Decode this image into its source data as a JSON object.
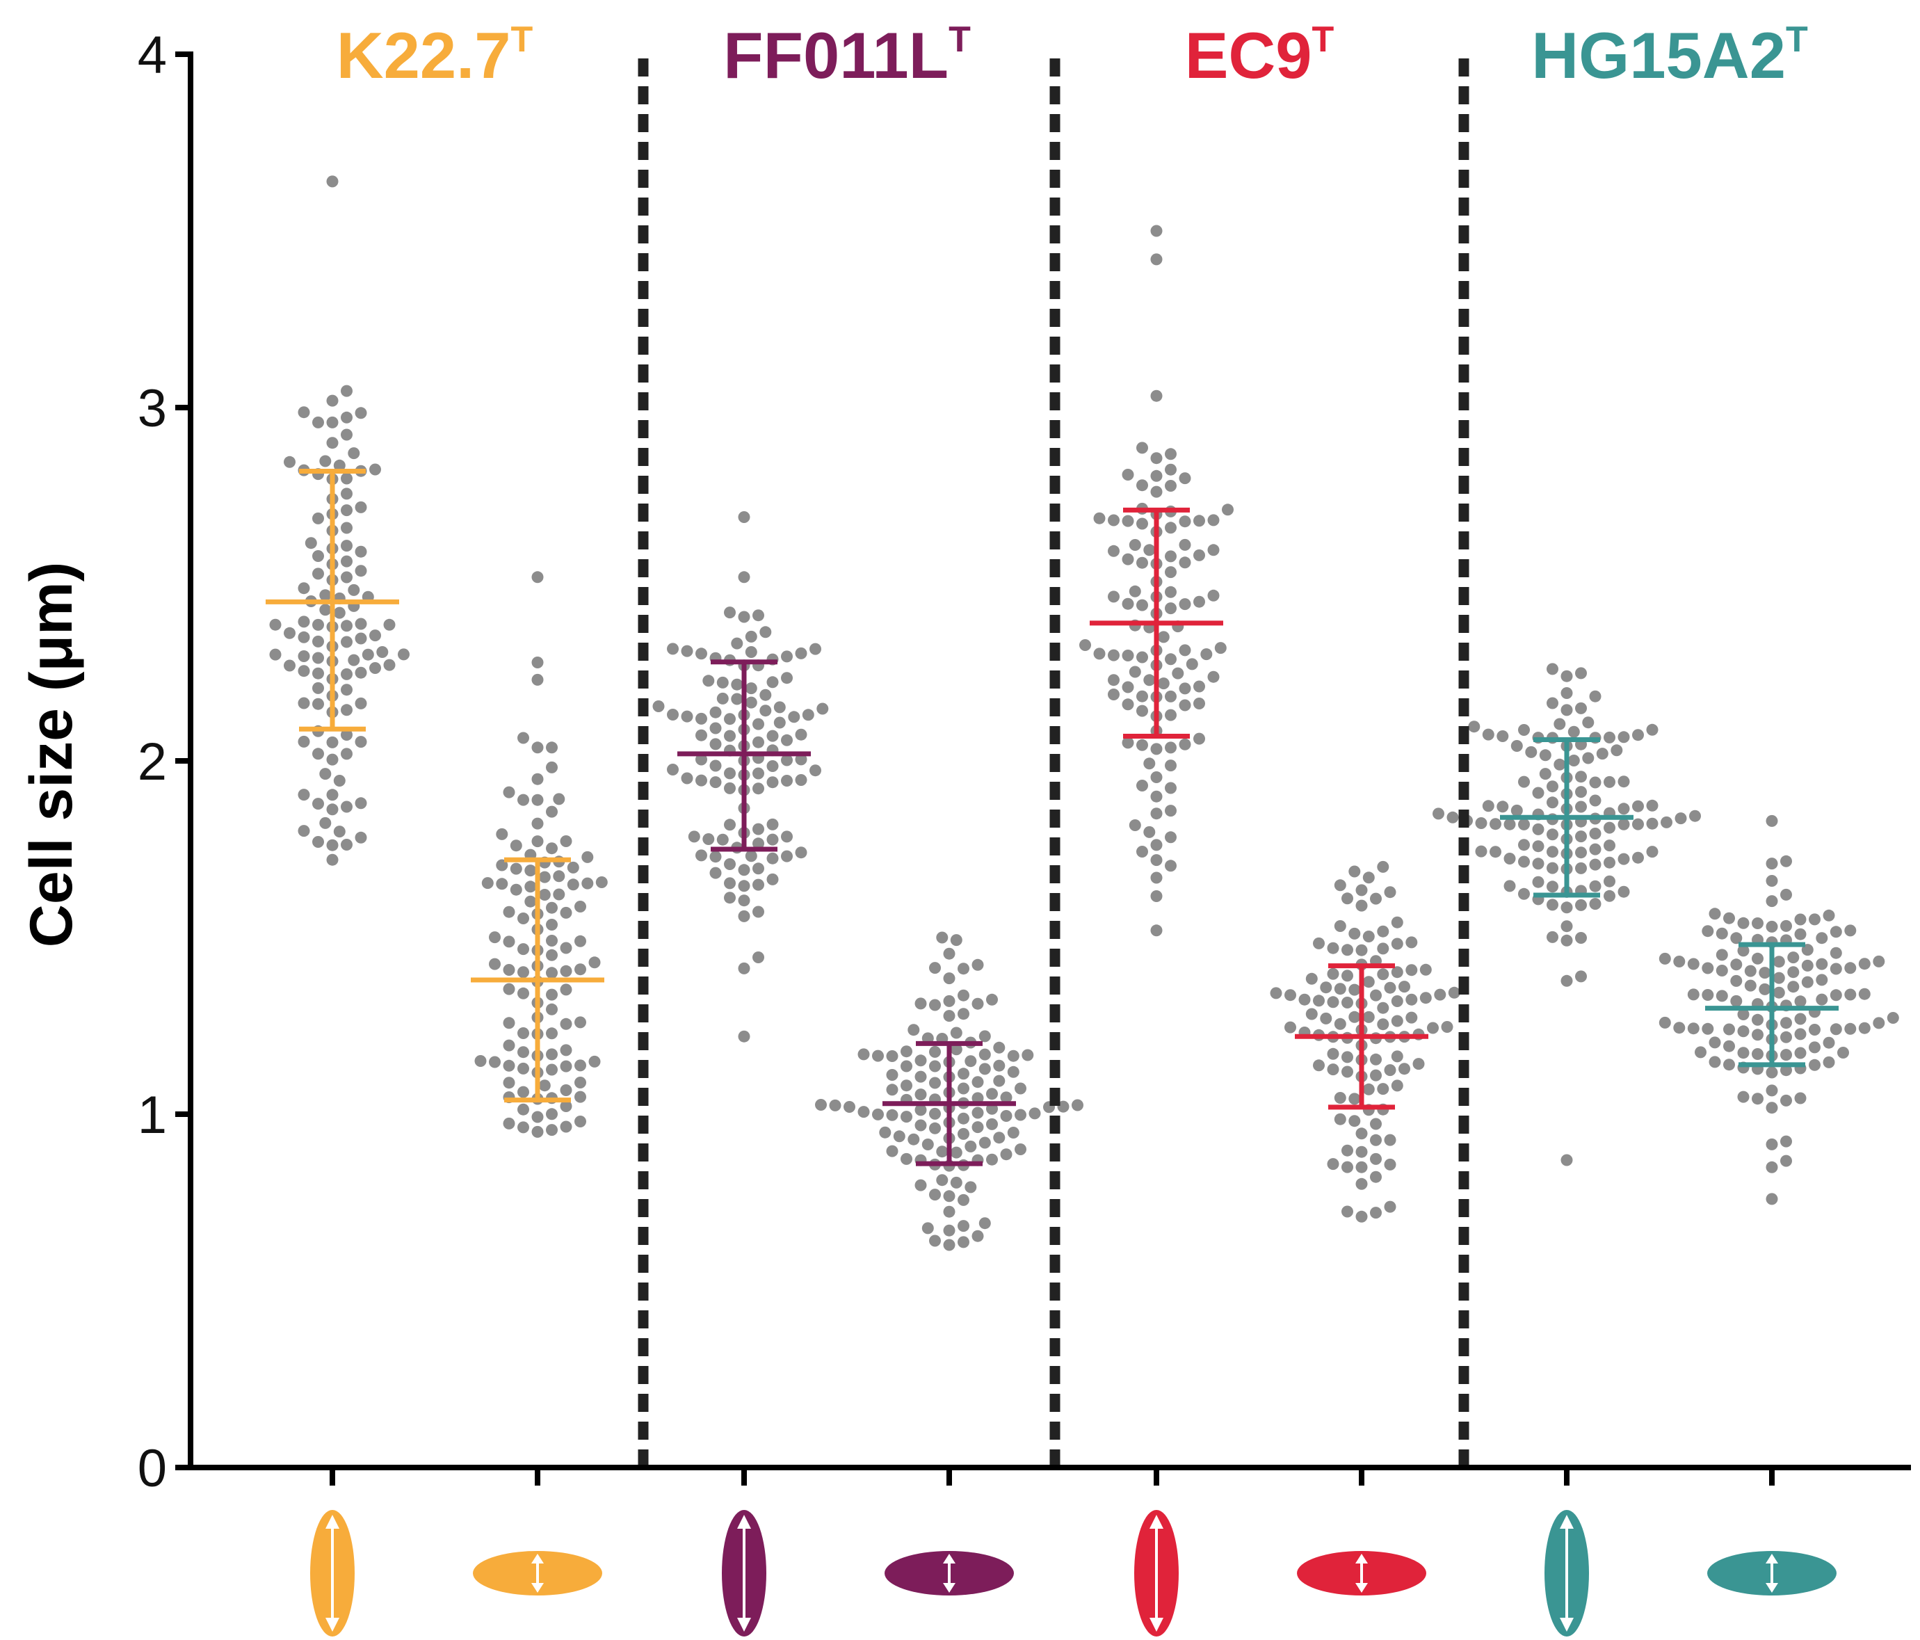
{
  "chart_data": {
    "type": "scatter",
    "subtype": "beeswarm-dot-plot-with-mean-and-sd",
    "title": "",
    "xlabel": "",
    "ylabel": "Cell size (μm)",
    "ylim": [
      0,
      4
    ],
    "yticks": [
      0,
      1,
      2,
      3,
      4
    ],
    "ytick_labels": [
      "0",
      "1",
      "2",
      "3",
      "4"
    ],
    "point_color": "#8c8c8c",
    "divider_style": "dashed",
    "groups": [
      {
        "name": "K22.7",
        "superscript": "T",
        "color": "#F7AC3B",
        "measurements": [
          {
            "dimension": "length",
            "icon": "vertical-cell-icon",
            "mean": 2.45,
            "sd_low": 2.09,
            "sd_high": 2.82,
            "min": 1.72,
            "max": 3.64,
            "n": 110
          },
          {
            "dimension": "width",
            "icon": "horizontal-cell-icon",
            "mean": 1.38,
            "sd_low": 1.04,
            "sd_high": 1.72,
            "min": 0.95,
            "max": 2.52,
            "n": 110
          }
        ]
      },
      {
        "name": "FF011L",
        "superscript": "T",
        "color": "#7D1D5A",
        "measurements": [
          {
            "dimension": "length",
            "icon": "vertical-cell-icon",
            "mean": 2.02,
            "sd_low": 1.75,
            "sd_high": 2.28,
            "min": 1.22,
            "max": 2.69,
            "n": 110
          },
          {
            "dimension": "width",
            "icon": "horizontal-cell-icon",
            "mean": 1.03,
            "sd_low": 0.86,
            "sd_high": 1.2,
            "min": 0.63,
            "max": 1.5,
            "n": 120
          }
        ]
      },
      {
        "name": "EC9",
        "superscript": "T",
        "color": "#E0233A",
        "measurements": [
          {
            "dimension": "length",
            "icon": "vertical-cell-icon",
            "mean": 2.39,
            "sd_low": 2.07,
            "sd_high": 2.71,
            "min": 1.52,
            "max": 3.5,
            "n": 110
          },
          {
            "dimension": "width",
            "icon": "horizontal-cell-icon",
            "mean": 1.22,
            "sd_low": 1.02,
            "sd_high": 1.42,
            "min": 0.71,
            "max": 1.7,
            "n": 110
          }
        ]
      },
      {
        "name": "HG15A2",
        "superscript": "T",
        "color": "#3A9593",
        "measurements": [
          {
            "dimension": "length",
            "icon": "vertical-cell-icon",
            "mean": 1.84,
            "sd_low": 1.62,
            "sd_high": 2.06,
            "min": 0.87,
            "max": 2.26,
            "n": 120
          },
          {
            "dimension": "width",
            "icon": "horizontal-cell-icon",
            "mean": 1.3,
            "sd_low": 1.14,
            "sd_high": 1.48,
            "min": 0.76,
            "max": 1.83,
            "n": 120
          }
        ]
      }
    ]
  }
}
